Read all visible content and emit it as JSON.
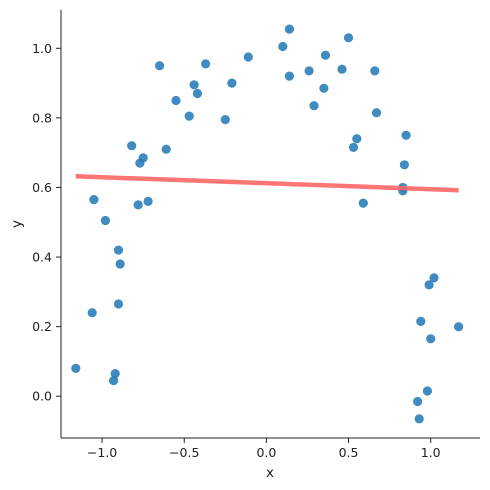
{
  "chart_data": {
    "type": "scatter",
    "title": "",
    "xlabel": "x",
    "ylabel": "y",
    "xlim": [
      -1.25,
      1.3
    ],
    "ylim": [
      -0.12,
      1.11
    ],
    "xticks": [
      -1.0,
      -0.5,
      0.0,
      0.5,
      1.0
    ],
    "xtick_labels": [
      "−1.0",
      "−0.5",
      "0.0",
      "0.5",
      "1.0"
    ],
    "yticks": [
      0.0,
      0.2,
      0.4,
      0.6,
      0.8,
      1.0
    ],
    "ytick_labels": [
      "0.0",
      "0.2",
      "0.4",
      "0.6",
      "0.8",
      "1.0"
    ],
    "grid": false,
    "legend": "none",
    "points_color": "#1f77b4",
    "line_color": "#ff6666",
    "series": [
      {
        "kind": "scatter",
        "x": [
          -1.16,
          -1.06,
          -1.05,
          -0.98,
          -0.93,
          -0.92,
          -0.9,
          -0.9,
          -0.89,
          -0.82,
          -0.78,
          -0.77,
          -0.75,
          -0.72,
          -0.65,
          -0.61,
          -0.55,
          -0.47,
          -0.44,
          -0.42,
          -0.37,
          -0.25,
          -0.21,
          -0.11,
          0.1,
          0.14,
          0.14,
          0.26,
          0.29,
          0.35,
          0.36,
          0.46,
          0.5,
          0.53,
          0.55,
          0.59,
          0.66,
          0.67,
          0.83,
          0.83,
          0.84,
          0.85,
          0.92,
          0.93,
          0.94,
          0.98,
          0.99,
          1.0,
          1.02,
          1.17
        ],
        "y": [
          0.08,
          0.24,
          0.565,
          0.505,
          0.045,
          0.065,
          0.42,
          0.265,
          0.38,
          0.72,
          0.55,
          0.67,
          0.685,
          0.56,
          0.95,
          0.71,
          0.85,
          0.805,
          0.895,
          0.87,
          0.955,
          0.795,
          0.9,
          0.975,
          1.005,
          1.055,
          0.92,
          0.935,
          0.835,
          0.885,
          0.98,
          0.94,
          1.03,
          0.715,
          0.74,
          0.555,
          0.935,
          0.815,
          0.6,
          0.59,
          0.665,
          0.75,
          -0.015,
          -0.065,
          0.215,
          0.015,
          0.32,
          0.165,
          0.34,
          0.2
        ]
      },
      {
        "kind": "line",
        "x": [
          -1.16,
          1.17
        ],
        "y": [
          0.632,
          0.592
        ]
      }
    ]
  }
}
